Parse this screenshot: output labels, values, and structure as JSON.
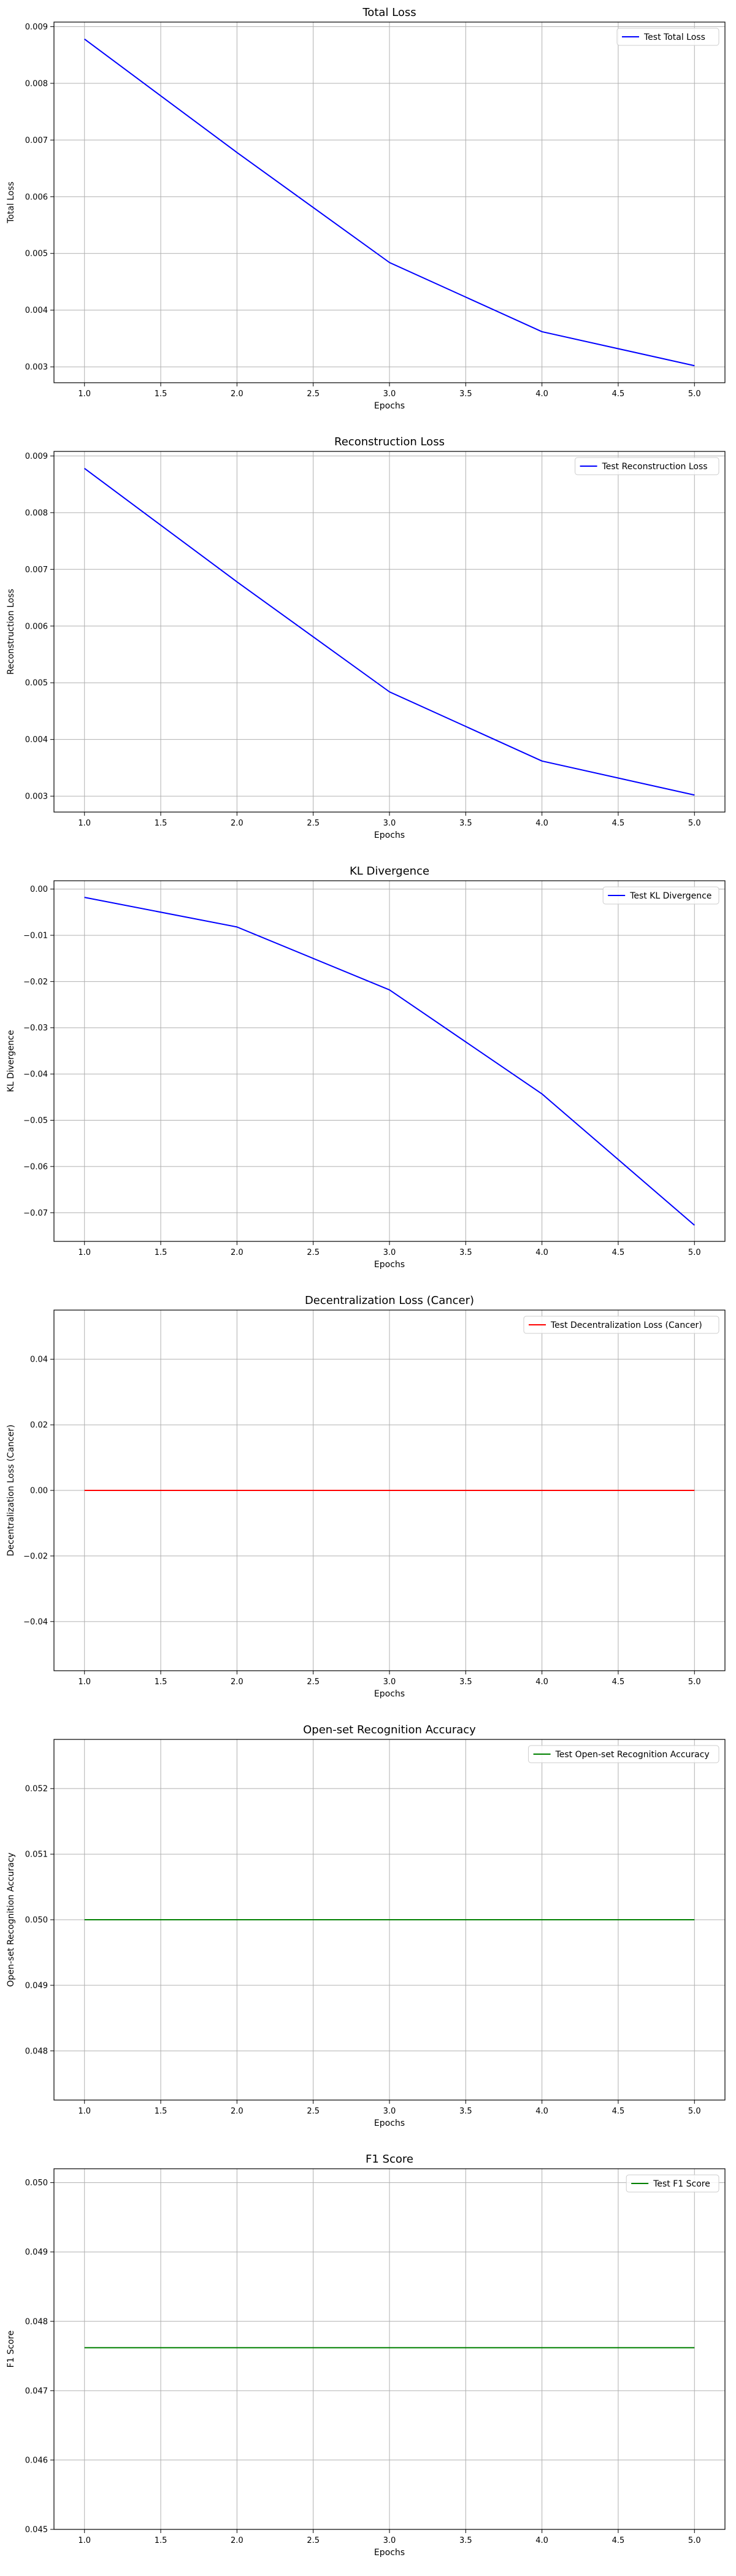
{
  "chart_data": [
    {
      "type": "line",
      "title": "Total Loss",
      "xlabel": "Epochs",
      "ylabel": "Total Loss",
      "xlim": [
        0.8,
        5.2
      ],
      "ylim": [
        0.00272,
        0.00908
      ],
      "x_ticks": [
        1.0,
        1.5,
        2.0,
        2.5,
        3.0,
        3.5,
        4.0,
        4.5,
        5.0
      ],
      "x_tick_labels": [
        "1.0",
        "1.5",
        "2.0",
        "2.5",
        "3.0",
        "3.5",
        "4.0",
        "4.5",
        "5.0"
      ],
      "y_ticks": [
        0.003,
        0.004,
        0.005,
        0.006,
        0.007,
        0.008,
        0.009
      ],
      "y_tick_labels": [
        "0.003",
        "0.004",
        "0.005",
        "0.006",
        "0.007",
        "0.008",
        "0.009"
      ],
      "grid": true,
      "legend_position": "top-right",
      "series": [
        {
          "name": "Test Total Loss",
          "color": "#0000ff",
          "x": [
            1,
            2,
            3,
            4,
            5
          ],
          "values": [
            0.00878,
            0.00678,
            0.00484,
            0.00362,
            0.00302
          ]
        }
      ]
    },
    {
      "type": "line",
      "title": "Reconstruction Loss",
      "xlabel": "Epochs",
      "ylabel": "Reconstruction Loss",
      "xlim": [
        0.8,
        5.2
      ],
      "ylim": [
        0.00272,
        0.00908
      ],
      "x_ticks": [
        1.0,
        1.5,
        2.0,
        2.5,
        3.0,
        3.5,
        4.0,
        4.5,
        5.0
      ],
      "x_tick_labels": [
        "1.0",
        "1.5",
        "2.0",
        "2.5",
        "3.0",
        "3.5",
        "4.0",
        "4.5",
        "5.0"
      ],
      "y_ticks": [
        0.003,
        0.004,
        0.005,
        0.006,
        0.007,
        0.008,
        0.009
      ],
      "y_tick_labels": [
        "0.003",
        "0.004",
        "0.005",
        "0.006",
        "0.007",
        "0.008",
        "0.009"
      ],
      "grid": true,
      "legend_position": "top-right",
      "series": [
        {
          "name": "Test Reconstruction Loss",
          "color": "#0000ff",
          "x": [
            1,
            2,
            3,
            4,
            5
          ],
          "values": [
            0.00878,
            0.00678,
            0.00484,
            0.00362,
            0.00302
          ]
        }
      ]
    },
    {
      "type": "line",
      "title": "KL Divergence",
      "xlabel": "Epochs",
      "ylabel": "KL Divergence",
      "xlim": [
        0.8,
        5.2
      ],
      "ylim": [
        -0.0762,
        0.0018
      ],
      "x_ticks": [
        1.0,
        1.5,
        2.0,
        2.5,
        3.0,
        3.5,
        4.0,
        4.5,
        5.0
      ],
      "x_tick_labels": [
        "1.0",
        "1.5",
        "2.0",
        "2.5",
        "3.0",
        "3.5",
        "4.0",
        "4.5",
        "5.0"
      ],
      "y_ticks": [
        0.0,
        -0.01,
        -0.02,
        -0.03,
        -0.04,
        -0.05,
        -0.06,
        -0.07
      ],
      "y_tick_labels": [
        "0.00",
        "−0.01",
        "−0.02",
        "−0.03",
        "−0.04",
        "−0.05",
        "−0.06",
        "−0.07"
      ],
      "grid": true,
      "legend_position": "top-right",
      "series": [
        {
          "name": "Test KL Divergence",
          "color": "#0000ff",
          "x": [
            1,
            2,
            3,
            4,
            5
          ],
          "values": [
            -0.0018,
            -0.0082,
            -0.0218,
            -0.0443,
            -0.0727
          ]
        }
      ]
    },
    {
      "type": "line",
      "title": "Decentralization Loss (Cancer)",
      "xlabel": "Epochs",
      "ylabel": "Decentralization Loss (Cancer)",
      "xlim": [
        0.8,
        5.2
      ],
      "ylim": [
        -0.055,
        0.055
      ],
      "x_ticks": [
        1.0,
        1.5,
        2.0,
        2.5,
        3.0,
        3.5,
        4.0,
        4.5,
        5.0
      ],
      "x_tick_labels": [
        "1.0",
        "1.5",
        "2.0",
        "2.5",
        "3.0",
        "3.5",
        "4.0",
        "4.5",
        "5.0"
      ],
      "y_ticks": [
        0.04,
        0.02,
        0.0,
        -0.02,
        -0.04
      ],
      "y_tick_labels": [
        "0.04",
        "0.02",
        "0.00",
        "−0.02",
        "−0.04"
      ],
      "grid": true,
      "legend_position": "top-right",
      "series": [
        {
          "name": "Test Decentralization Loss (Cancer)",
          "color": "#ff0000",
          "x": [
            1,
            2,
            3,
            4,
            5
          ],
          "values": [
            0,
            0,
            0,
            0,
            0
          ]
        }
      ]
    },
    {
      "type": "line",
      "title": "Open-set Recognition Accuracy",
      "xlabel": "Epochs",
      "ylabel": "Open-set Recognition Accuracy",
      "xlim": [
        0.8,
        5.2
      ],
      "ylim": [
        0.04725,
        0.05275
      ],
      "x_ticks": [
        1.0,
        1.5,
        2.0,
        2.5,
        3.0,
        3.5,
        4.0,
        4.5,
        5.0
      ],
      "x_tick_labels": [
        "1.0",
        "1.5",
        "2.0",
        "2.5",
        "3.0",
        "3.5",
        "4.0",
        "4.5",
        "5.0"
      ],
      "y_ticks": [
        0.052,
        0.051,
        0.05,
        0.049,
        0.048
      ],
      "y_tick_labels": [
        "0.052",
        "0.051",
        "0.050",
        "0.049",
        "0.048"
      ],
      "grid": true,
      "legend_position": "top-right",
      "series": [
        {
          "name": "Test Open-set Recognition Accuracy",
          "color": "#008000",
          "x": [
            1,
            2,
            3,
            4,
            5
          ],
          "values": [
            0.05,
            0.05,
            0.05,
            0.05,
            0.05
          ]
        }
      ]
    },
    {
      "type": "line",
      "title": "F1 Score",
      "xlabel": "Epochs",
      "ylabel": "F1 Score",
      "xlim": [
        0.8,
        5.2
      ],
      "ylim": [
        0.045,
        0.0502
      ],
      "x_ticks": [
        1.0,
        1.5,
        2.0,
        2.5,
        3.0,
        3.5,
        4.0,
        4.5,
        5.0
      ],
      "x_tick_labels": [
        "1.0",
        "1.5",
        "2.0",
        "2.5",
        "3.0",
        "3.5",
        "4.0",
        "4.5",
        "5.0"
      ],
      "y_ticks": [
        0.05,
        0.049,
        0.048,
        0.047,
        0.046,
        0.045
      ],
      "y_tick_labels": [
        "0.050",
        "0.049",
        "0.048",
        "0.047",
        "0.046",
        "0.045"
      ],
      "grid": true,
      "legend_position": "top-right",
      "series": [
        {
          "name": "Test F1 Score",
          "color": "#008000",
          "x": [
            1,
            2,
            3,
            4,
            5
          ],
          "values": [
            0.04762,
            0.04762,
            0.04762,
            0.04762,
            0.04762
          ]
        }
      ]
    }
  ]
}
